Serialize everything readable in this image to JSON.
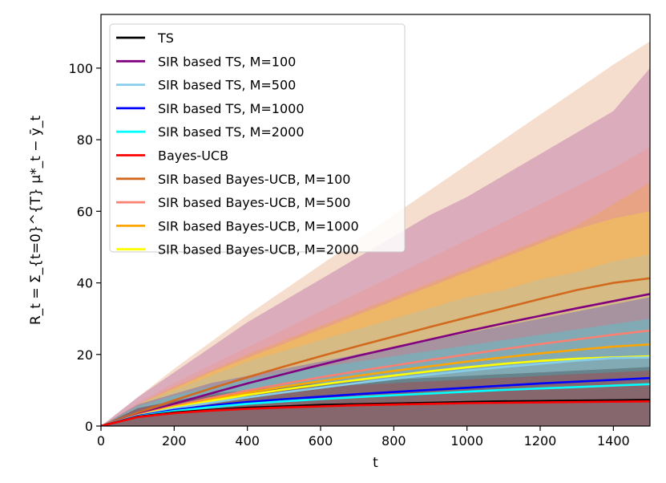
{
  "chart_data": {
    "type": "line",
    "xlabel": "t",
    "ylabel": "R_t = Σ_{t=0}^{T} μ*_t − ȳ_t",
    "xlim": [
      0,
      1500
    ],
    "ylim": [
      0,
      115
    ],
    "xticks": [
      0,
      200,
      400,
      600,
      800,
      1000,
      1200,
      1400
    ],
    "yticks": [
      0,
      20,
      40,
      60,
      80,
      100
    ],
    "grid": false,
    "legend_position": "top-left",
    "series": [
      {
        "name": "TS",
        "color": "#000000",
        "x": [
          0,
          100,
          200,
          300,
          400,
          500,
          600,
          700,
          800,
          900,
          1000,
          1100,
          1200,
          1300,
          1400,
          1500
        ],
        "y": [
          0,
          2.6,
          3.8,
          4.5,
          5.1,
          5.5,
          5.9,
          6.1,
          6.3,
          6.5,
          6.7,
          6.9,
          7.0,
          7.1,
          7.2,
          7.3
        ],
        "band_upper": [
          0,
          5,
          7,
          9,
          10,
          11,
          12,
          12.5,
          13,
          13.5,
          14,
          14.5,
          15,
          15.5,
          16,
          16.5
        ]
      },
      {
        "name": "SIR based TS, M=100",
        "color": "#800080",
        "x": [
          0,
          100,
          200,
          300,
          400,
          500,
          600,
          700,
          800,
          900,
          1000,
          1100,
          1200,
          1300,
          1400,
          1500
        ],
        "y": [
          0,
          3.2,
          6.2,
          9.1,
          11.9,
          14.5,
          17.1,
          19.6,
          21.9,
          24.2,
          26.5,
          28.7,
          30.8,
          32.9,
          34.9,
          36.9
        ],
        "band_upper": [
          0,
          8,
          15,
          22,
          29,
          35,
          41,
          47,
          53,
          59,
          64,
          70,
          76,
          82,
          88,
          100
        ]
      },
      {
        "name": "SIR based TS, M=500",
        "color": "#87CEEB",
        "x": [
          0,
          100,
          200,
          300,
          400,
          500,
          600,
          700,
          800,
          900,
          1000,
          1100,
          1200,
          1300,
          1400,
          1500
        ],
        "y": [
          0,
          2.9,
          4.9,
          6.5,
          8.0,
          9.4,
          10.7,
          12.0,
          13.2,
          14.4,
          15.5,
          16.5,
          17.4,
          18.3,
          19.0,
          19.2
        ],
        "band_upper": [
          0,
          6,
          10,
          14,
          18,
          21,
          24,
          27,
          30,
          33,
          36,
          38,
          41,
          43,
          46,
          48
        ]
      },
      {
        "name": "SIR based TS, M=1000",
        "color": "#0000FF",
        "x": [
          0,
          100,
          200,
          300,
          400,
          500,
          600,
          700,
          800,
          900,
          1000,
          1100,
          1200,
          1300,
          1400,
          1500
        ],
        "y": [
          0,
          2.8,
          4.5,
          5.7,
          6.7,
          7.5,
          8.2,
          8.9,
          9.5,
          10.1,
          10.7,
          11.3,
          11.9,
          12.4,
          12.9,
          13.4
        ],
        "band_upper": [
          0,
          6,
          9,
          12,
          14,
          16,
          18,
          20,
          22,
          24,
          26,
          28,
          30,
          32,
          34,
          36
        ]
      },
      {
        "name": "SIR based TS, M=2000",
        "color": "#00FFFF",
        "x": [
          0,
          100,
          200,
          300,
          400,
          500,
          600,
          700,
          800,
          900,
          1000,
          1100,
          1200,
          1300,
          1400,
          1500
        ],
        "y": [
          0,
          2.7,
          4.2,
          5.3,
          6.2,
          6.9,
          7.5,
          8.1,
          8.6,
          9.1,
          9.6,
          10.1,
          10.5,
          10.9,
          11.3,
          11.7
        ],
        "band_upper": [
          0,
          5.5,
          8.5,
          11,
          13,
          15,
          16.5,
          18,
          19.5,
          21,
          22.5,
          24,
          25.5,
          27,
          28.5,
          30
        ]
      },
      {
        "name": "Bayes-UCB",
        "color": "#FF0000",
        "x": [
          0,
          100,
          200,
          300,
          400,
          500,
          600,
          700,
          800,
          900,
          1000,
          1100,
          1200,
          1300,
          1400,
          1500
        ],
        "y": [
          0,
          2.5,
          3.6,
          4.3,
          4.8,
          5.2,
          5.5,
          5.8,
          6.0,
          6.2,
          6.4,
          6.5,
          6.6,
          6.7,
          6.8,
          6.9
        ],
        "band_upper": [
          0,
          5,
          7,
          8.5,
          9.5,
          10.5,
          11,
          11.5,
          12,
          12.5,
          13,
          13.5,
          14,
          14.5,
          15,
          15.5
        ]
      },
      {
        "name": "SIR based Bayes-UCB, M=100",
        "color": "#D2691E",
        "x": [
          0,
          100,
          200,
          300,
          400,
          500,
          600,
          700,
          800,
          900,
          1000,
          1100,
          1200,
          1300,
          1400,
          1500
        ],
        "y": [
          0,
          3.7,
          7.2,
          10.5,
          13.6,
          16.6,
          19.5,
          22.3,
          25.0,
          27.7,
          30.3,
          32.9,
          35.5,
          38.0,
          40.0,
          41.3
        ],
        "band_upper": [
          0,
          8,
          16,
          23.5,
          31,
          38,
          45,
          52,
          59,
          66,
          73,
          80,
          87,
          94,
          101,
          107.5
        ]
      },
      {
        "name": "SIR based Bayes-UCB, M=500",
        "color": "#FA8072",
        "x": [
          0,
          100,
          200,
          300,
          400,
          500,
          600,
          700,
          800,
          900,
          1000,
          1100,
          1200,
          1300,
          1400,
          1500
        ],
        "y": [
          0,
          3.1,
          5.6,
          7.8,
          9.9,
          11.8,
          13.6,
          15.3,
          16.9,
          18.5,
          20.0,
          21.5,
          22.9,
          24.2,
          25.5,
          26.7
        ],
        "band_upper": [
          0,
          6.5,
          12,
          17,
          22,
          27,
          32,
          37,
          42,
          47,
          52,
          57,
          62,
          67,
          72,
          78
        ]
      },
      {
        "name": "SIR based Bayes-UCB, M=1000",
        "color": "#FFA500",
        "x": [
          0,
          100,
          200,
          300,
          400,
          500,
          600,
          700,
          800,
          900,
          1000,
          1100,
          1200,
          1300,
          1400,
          1500
        ],
        "y": [
          0,
          3.0,
          5.4,
          7.4,
          9.3,
          11.0,
          12.5,
          14.0,
          15.4,
          16.7,
          18.0,
          19.2,
          20.3,
          21.3,
          22.2,
          22.8
        ],
        "band_upper": [
          0,
          6,
          11,
          15.5,
          20,
          24,
          28,
          32,
          36,
          40,
          44,
          48,
          52,
          56,
          62,
          68
        ]
      },
      {
        "name": "SIR based Bayes-UCB, M=2000",
        "color": "#FFFF00",
        "x": [
          0,
          100,
          200,
          300,
          400,
          500,
          600,
          700,
          800,
          900,
          1000,
          1100,
          1200,
          1300,
          1400,
          1500
        ],
        "y": [
          0,
          2.9,
          5.2,
          7.0,
          8.7,
          10.2,
          11.6,
          12.9,
          14.1,
          15.3,
          16.4,
          17.4,
          18.2,
          18.8,
          19.2,
          19.5
        ],
        "band_upper": [
          0,
          6,
          10.5,
          15,
          19,
          23,
          27,
          31,
          35,
          39,
          43,
          47,
          51,
          55,
          58,
          60
        ]
      }
    ]
  }
}
